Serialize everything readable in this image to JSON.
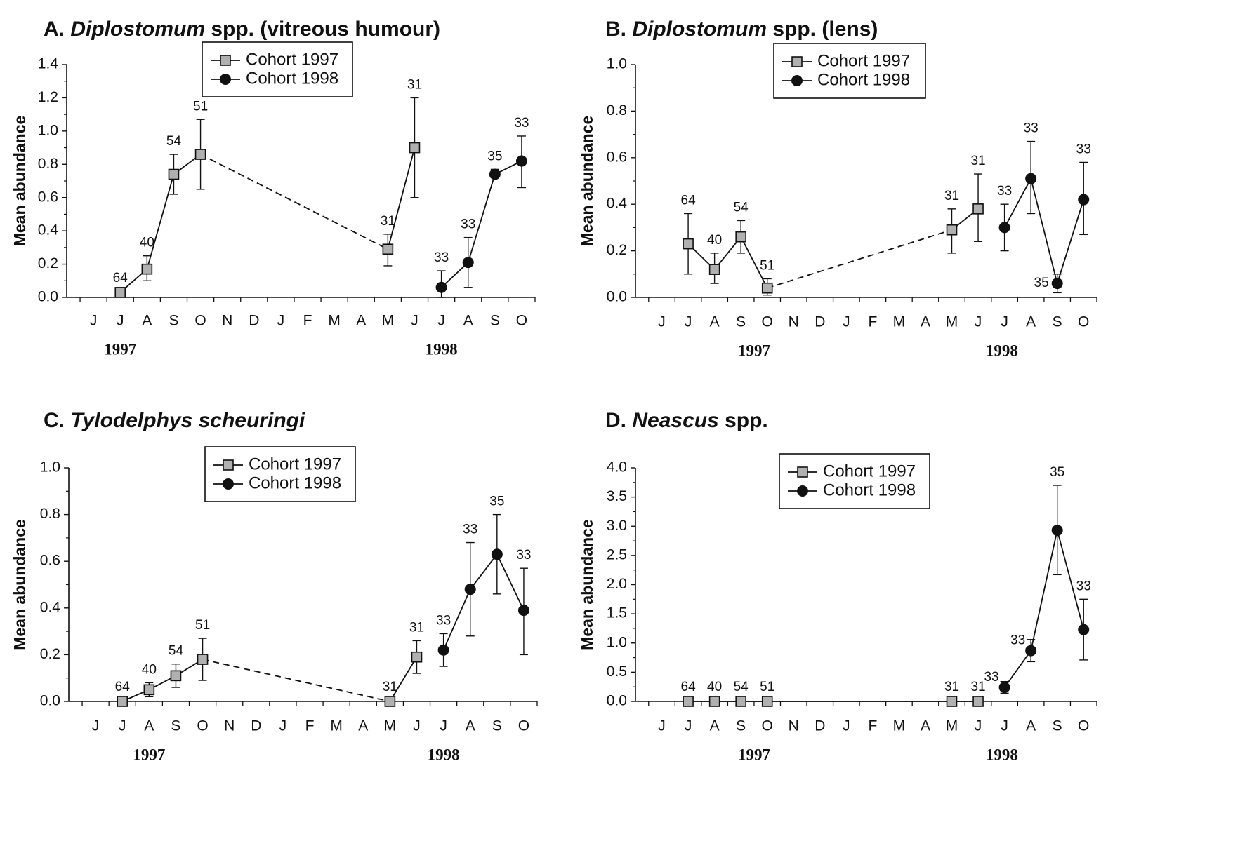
{
  "months": [
    "J",
    "J",
    "A",
    "S",
    "O",
    "N",
    "D",
    "J",
    "F",
    "M",
    "A",
    "M",
    "J",
    "J",
    "A",
    "S",
    "O"
  ],
  "years": [
    "1997",
    "1998"
  ],
  "legend": {
    "cohort1997": "Cohort 1997",
    "cohort1998": "Cohort 1998"
  },
  "colors": {
    "ink": "#111111",
    "square_fill": "#b0b0b0",
    "circle_fill": "#111111"
  },
  "chart_data": [
    {
      "id": "A",
      "type": "line",
      "title_prefix": "A. ",
      "title_italic": "Diplostomum",
      "title_suffix": " spp. (vitreous humour)",
      "ylabel": "Mean abundance",
      "ylim": [
        0,
        1.4
      ],
      "yticks": [
        "0.0",
        "0.2",
        "0.4",
        "0.6",
        "0.8",
        "1.0",
        "1.2",
        "1.4"
      ],
      "legend_position": "top-center",
      "series": [
        {
          "name": "Cohort 1997",
          "marker": "square",
          "points": [
            {
              "x": 1,
              "y": 0.03,
              "lo": 0.03,
              "hi": 0.03,
              "n": "64"
            },
            {
              "x": 2,
              "y": 0.17,
              "lo": 0.1,
              "hi": 0.25,
              "n": "40"
            },
            {
              "x": 3,
              "y": 0.74,
              "lo": 0.62,
              "hi": 0.86,
              "n": "54"
            },
            {
              "x": 4,
              "y": 0.86,
              "lo": 0.65,
              "hi": 1.07,
              "n": "51"
            },
            {
              "x": 11,
              "y": 0.29,
              "lo": 0.19,
              "hi": 0.38,
              "n": "31"
            },
            {
              "x": 12,
              "y": 0.9,
              "lo": 0.6,
              "hi": 1.2,
              "n": "31"
            }
          ],
          "dashed_segments": [
            [
              3,
              4
            ]
          ]
        },
        {
          "name": "Cohort 1998",
          "marker": "circle",
          "points": [
            {
              "x": 13,
              "y": 0.06,
              "lo": 0.0,
              "hi": 0.16,
              "n": "33"
            },
            {
              "x": 14,
              "y": 0.21,
              "lo": 0.06,
              "hi": 0.36,
              "n": "33"
            },
            {
              "x": 15,
              "y": 0.74,
              "lo": 0.72,
              "hi": 0.77,
              "n": "35"
            },
            {
              "x": 16,
              "y": 0.82,
              "lo": 0.66,
              "hi": 0.97,
              "n": "33"
            }
          ],
          "dashed_segments": []
        }
      ]
    },
    {
      "id": "B",
      "type": "line",
      "title_prefix": "B. ",
      "title_italic": "Diplostomum",
      "title_suffix": " spp. (lens)",
      "ylabel": "Mean abundance",
      "ylim": [
        0,
        1.0
      ],
      "yticks": [
        "0.0",
        "0.2",
        "0.4",
        "0.6",
        "0.8",
        "1.0"
      ],
      "legend_position": "top-center",
      "series": [
        {
          "name": "Cohort 1997",
          "marker": "square",
          "points": [
            {
              "x": 1,
              "y": 0.23,
              "lo": 0.1,
              "hi": 0.36,
              "n": "64"
            },
            {
              "x": 2,
              "y": 0.12,
              "lo": 0.06,
              "hi": 0.19,
              "n": "40"
            },
            {
              "x": 3,
              "y": 0.26,
              "lo": 0.19,
              "hi": 0.33,
              "n": "54"
            },
            {
              "x": 4,
              "y": 0.04,
              "lo": 0.01,
              "hi": 0.08,
              "n": "51"
            },
            {
              "x": 11,
              "y": 0.29,
              "lo": 0.19,
              "hi": 0.38,
              "n": "31"
            },
            {
              "x": 12,
              "y": 0.38,
              "lo": 0.24,
              "hi": 0.53,
              "n": "31"
            }
          ],
          "dashed_segments": [
            [
              3,
              4
            ]
          ]
        },
        {
          "name": "Cohort 1998",
          "marker": "circle",
          "points": [
            {
              "x": 13,
              "y": 0.3,
              "lo": 0.2,
              "hi": 0.4,
              "n": "33"
            },
            {
              "x": 14,
              "y": 0.51,
              "lo": 0.36,
              "hi": 0.67,
              "n": "33"
            },
            {
              "x": 15,
              "y": 0.06,
              "lo": 0.02,
              "hi": 0.1,
              "n": "35"
            },
            {
              "x": 16,
              "y": 0.42,
              "lo": 0.27,
              "hi": 0.58,
              "n": "33"
            }
          ],
          "dashed_segments": []
        }
      ]
    },
    {
      "id": "C",
      "type": "line",
      "title_prefix": "C. ",
      "title_italic": "Tylodelphys scheuringi",
      "title_suffix": "",
      "ylabel": "Mean abundance",
      "ylim": [
        0,
        1.0
      ],
      "yticks": [
        "0.0",
        "0.2",
        "0.4",
        "0.6",
        "0.8",
        "1.0"
      ],
      "legend_position": "top-center",
      "series": [
        {
          "name": "Cohort 1997",
          "marker": "square",
          "points": [
            {
              "x": 1,
              "y": 0.0,
              "lo": 0.0,
              "hi": 0.0,
              "n": "64"
            },
            {
              "x": 2,
              "y": 0.05,
              "lo": 0.02,
              "hi": 0.08,
              "n": "40"
            },
            {
              "x": 3,
              "y": 0.11,
              "lo": 0.06,
              "hi": 0.16,
              "n": "54"
            },
            {
              "x": 4,
              "y": 0.18,
              "lo": 0.09,
              "hi": 0.27,
              "n": "51"
            },
            {
              "x": 11,
              "y": 0.0,
              "lo": 0.0,
              "hi": 0.0,
              "n": "31"
            },
            {
              "x": 12,
              "y": 0.19,
              "lo": 0.12,
              "hi": 0.26,
              "n": "31"
            }
          ],
          "dashed_segments": [
            [
              3,
              4
            ]
          ]
        },
        {
          "name": "Cohort 1998",
          "marker": "circle",
          "points": [
            {
              "x": 13,
              "y": 0.22,
              "lo": 0.15,
              "hi": 0.29,
              "n": "33"
            },
            {
              "x": 14,
              "y": 0.48,
              "lo": 0.28,
              "hi": 0.68,
              "n": "33"
            },
            {
              "x": 15,
              "y": 0.63,
              "lo": 0.46,
              "hi": 0.8,
              "n": "35"
            },
            {
              "x": 16,
              "y": 0.39,
              "lo": 0.2,
              "hi": 0.57,
              "n": "33"
            }
          ],
          "dashed_segments": []
        }
      ]
    },
    {
      "id": "D",
      "type": "line",
      "title_prefix": "D. ",
      "title_italic": "Neascus",
      "title_suffix": " spp.",
      "ylabel": "Mean abundance",
      "ylim": [
        0,
        4.0
      ],
      "yticks": [
        "0.0",
        "0.5",
        "1.0",
        "1.5",
        "2.0",
        "2.5",
        "3.0",
        "3.5",
        "4.0"
      ],
      "legend_position": "top-center",
      "series": [
        {
          "name": "Cohort 1997",
          "marker": "square",
          "points": [
            {
              "x": 1,
              "y": 0.0,
              "lo": 0.0,
              "hi": 0.0,
              "n": "64"
            },
            {
              "x": 2,
              "y": 0.0,
              "lo": 0.0,
              "hi": 0.0,
              "n": "40"
            },
            {
              "x": 3,
              "y": 0.0,
              "lo": 0.0,
              "hi": 0.0,
              "n": "54"
            },
            {
              "x": 4,
              "y": 0.0,
              "lo": 0.0,
              "hi": 0.0,
              "n": "51"
            },
            {
              "x": 11,
              "y": 0.0,
              "lo": 0.0,
              "hi": 0.0,
              "n": "31"
            },
            {
              "x": 12,
              "y": 0.0,
              "lo": 0.0,
              "hi": 0.0,
              "n": "31"
            }
          ],
          "dashed_segments": []
        },
        {
          "name": "Cohort 1998",
          "marker": "circle",
          "points": [
            {
              "x": 13,
              "y": 0.24,
              "lo": 0.14,
              "hi": 0.34,
              "n": "33"
            },
            {
              "x": 14,
              "y": 0.87,
              "lo": 0.68,
              "hi": 1.06,
              "n": "33"
            },
            {
              "x": 15,
              "y": 2.93,
              "lo": 2.17,
              "hi": 3.7,
              "n": "35"
            },
            {
              "x": 16,
              "y": 1.23,
              "lo": 0.71,
              "hi": 1.75,
              "n": "33"
            }
          ],
          "dashed_segments": []
        }
      ]
    }
  ]
}
